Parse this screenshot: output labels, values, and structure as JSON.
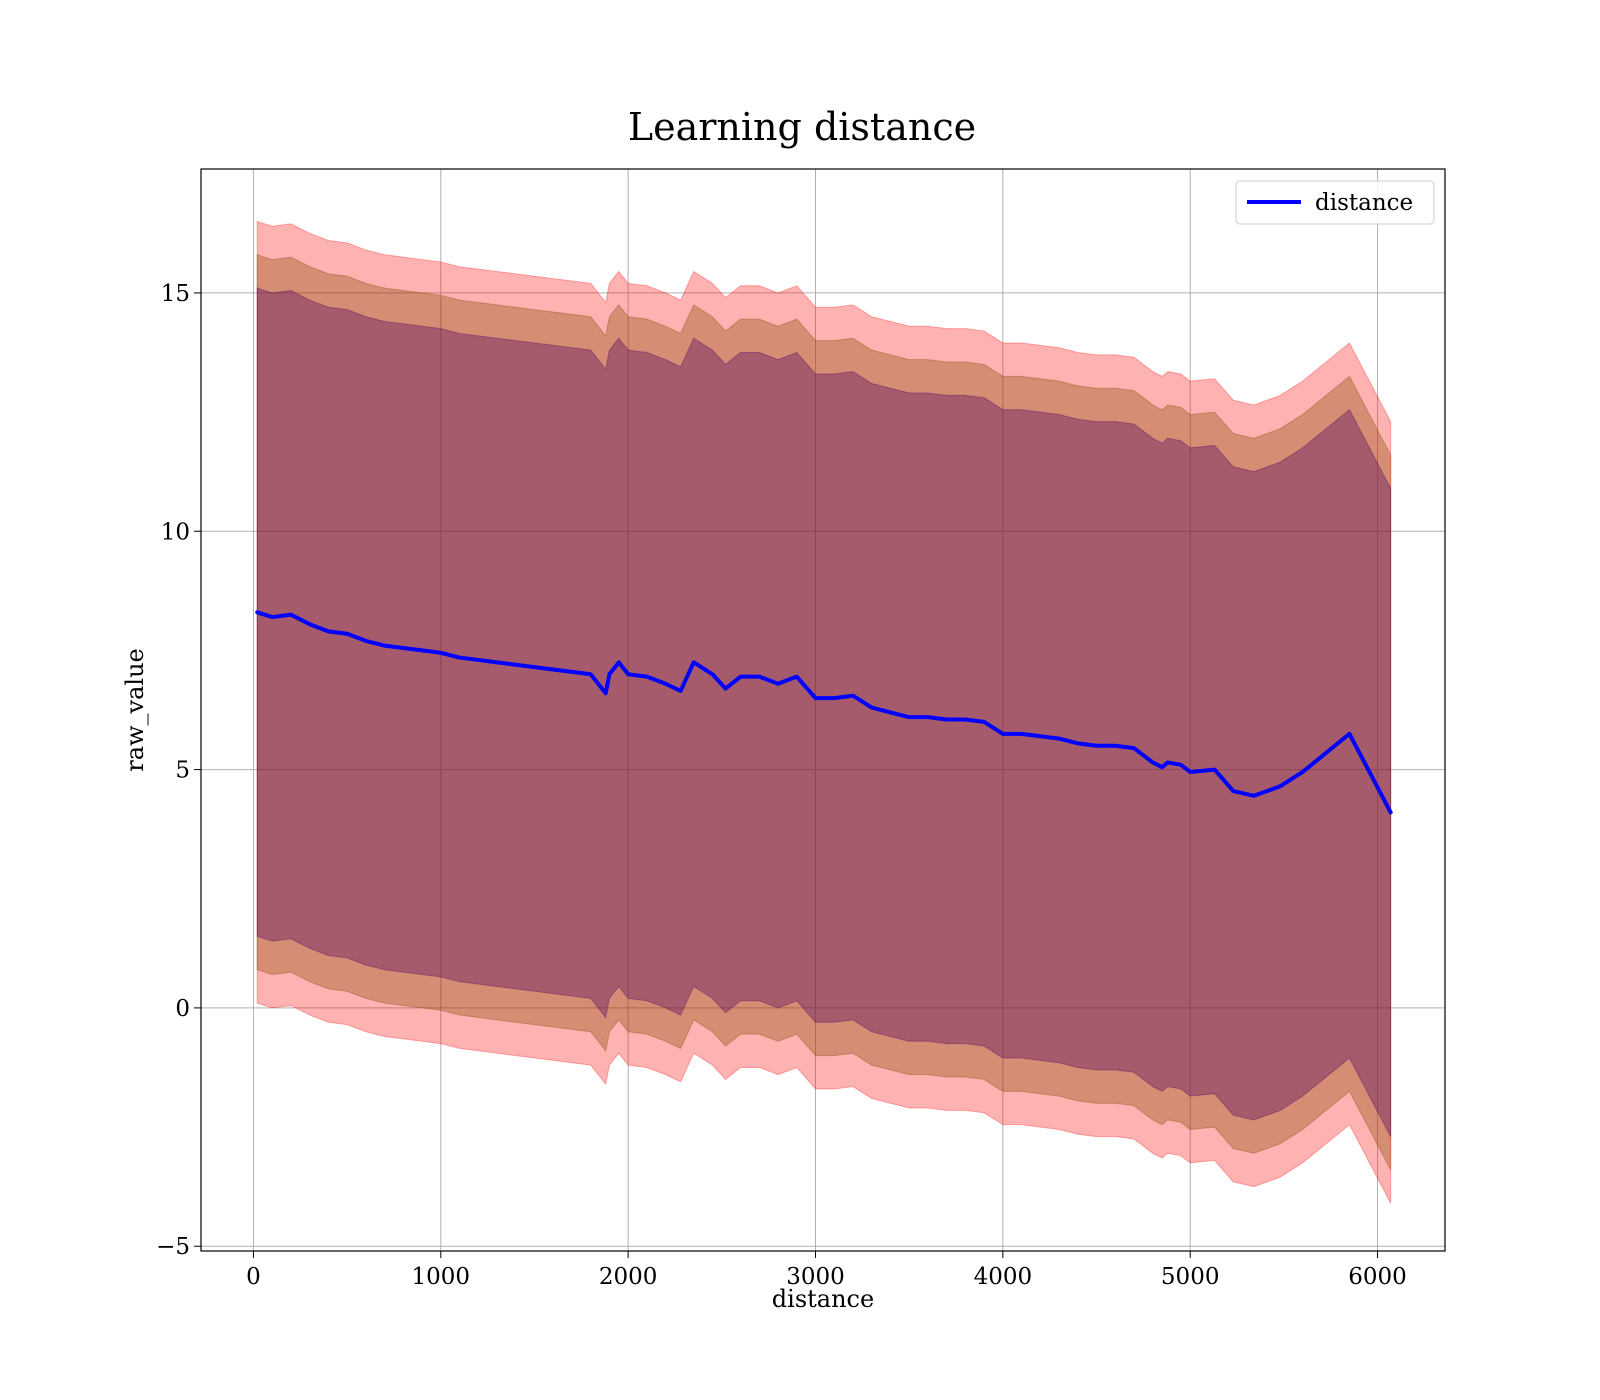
{
  "chart_data": {
    "type": "line",
    "title": "Learning distance",
    "xlabel": "distance",
    "ylabel": "raw_value",
    "xlim": [
      -280,
      6360
    ],
    "ylim": [
      -5.1,
      17.6
    ],
    "xticks": [
      0,
      1000,
      2000,
      3000,
      4000,
      5000,
      6000
    ],
    "yticks": [
      -5,
      0,
      5,
      10,
      15
    ],
    "ytick_labels": [
      "−5",
      "0",
      "5",
      "10",
      "15"
    ],
    "grid": true,
    "legend": {
      "position": "top-right",
      "entries": [
        "distance"
      ]
    },
    "series": [
      {
        "name": "distance",
        "color": "#0000ff",
        "x": [
          20,
          100,
          200,
          300,
          400,
          500,
          600,
          700,
          800,
          900,
          1000,
          1100,
          1200,
          1300,
          1400,
          1500,
          1600,
          1700,
          1800,
          1880,
          1900,
          1950,
          2000,
          2100,
          2200,
          2280,
          2350,
          2450,
          2520,
          2600,
          2700,
          2800,
          2900,
          3000,
          3100,
          3200,
          3300,
          3400,
          3500,
          3600,
          3700,
          3800,
          3900,
          4000,
          4100,
          4200,
          4300,
          4400,
          4500,
          4600,
          4700,
          4800,
          4850,
          4880,
          4950,
          5000,
          5130,
          5230,
          5340,
          5480,
          5600,
          5850,
          6070
        ],
        "values": [
          8.3,
          8.2,
          8.25,
          8.05,
          7.9,
          7.85,
          7.7,
          7.6,
          7.55,
          7.5,
          7.45,
          7.35,
          7.3,
          7.25,
          7.2,
          7.15,
          7.1,
          7.05,
          7.0,
          6.6,
          7.0,
          7.25,
          7.0,
          6.95,
          6.8,
          6.65,
          7.25,
          7.0,
          6.7,
          6.95,
          6.95,
          6.8,
          6.95,
          6.5,
          6.5,
          6.55,
          6.3,
          6.2,
          6.1,
          6.1,
          6.05,
          6.05,
          6.0,
          5.75,
          5.75,
          5.7,
          5.65,
          5.55,
          5.5,
          5.5,
          5.45,
          5.15,
          5.05,
          5.15,
          5.1,
          4.95,
          5.0,
          4.55,
          4.45,
          4.65,
          4.95,
          5.75,
          4.1
        ]
      }
    ],
    "bands": [
      {
        "name": "band_3",
        "color": "#ff0000",
        "opacity": 0.3,
        "offset": 8.2
      },
      {
        "name": "band_2",
        "color": "#8b4500",
        "opacity": 0.35,
        "offset": 7.5
      },
      {
        "name": "band_1",
        "color": "#4b0060",
        "opacity": 0.35,
        "offset": 6.8
      }
    ]
  }
}
